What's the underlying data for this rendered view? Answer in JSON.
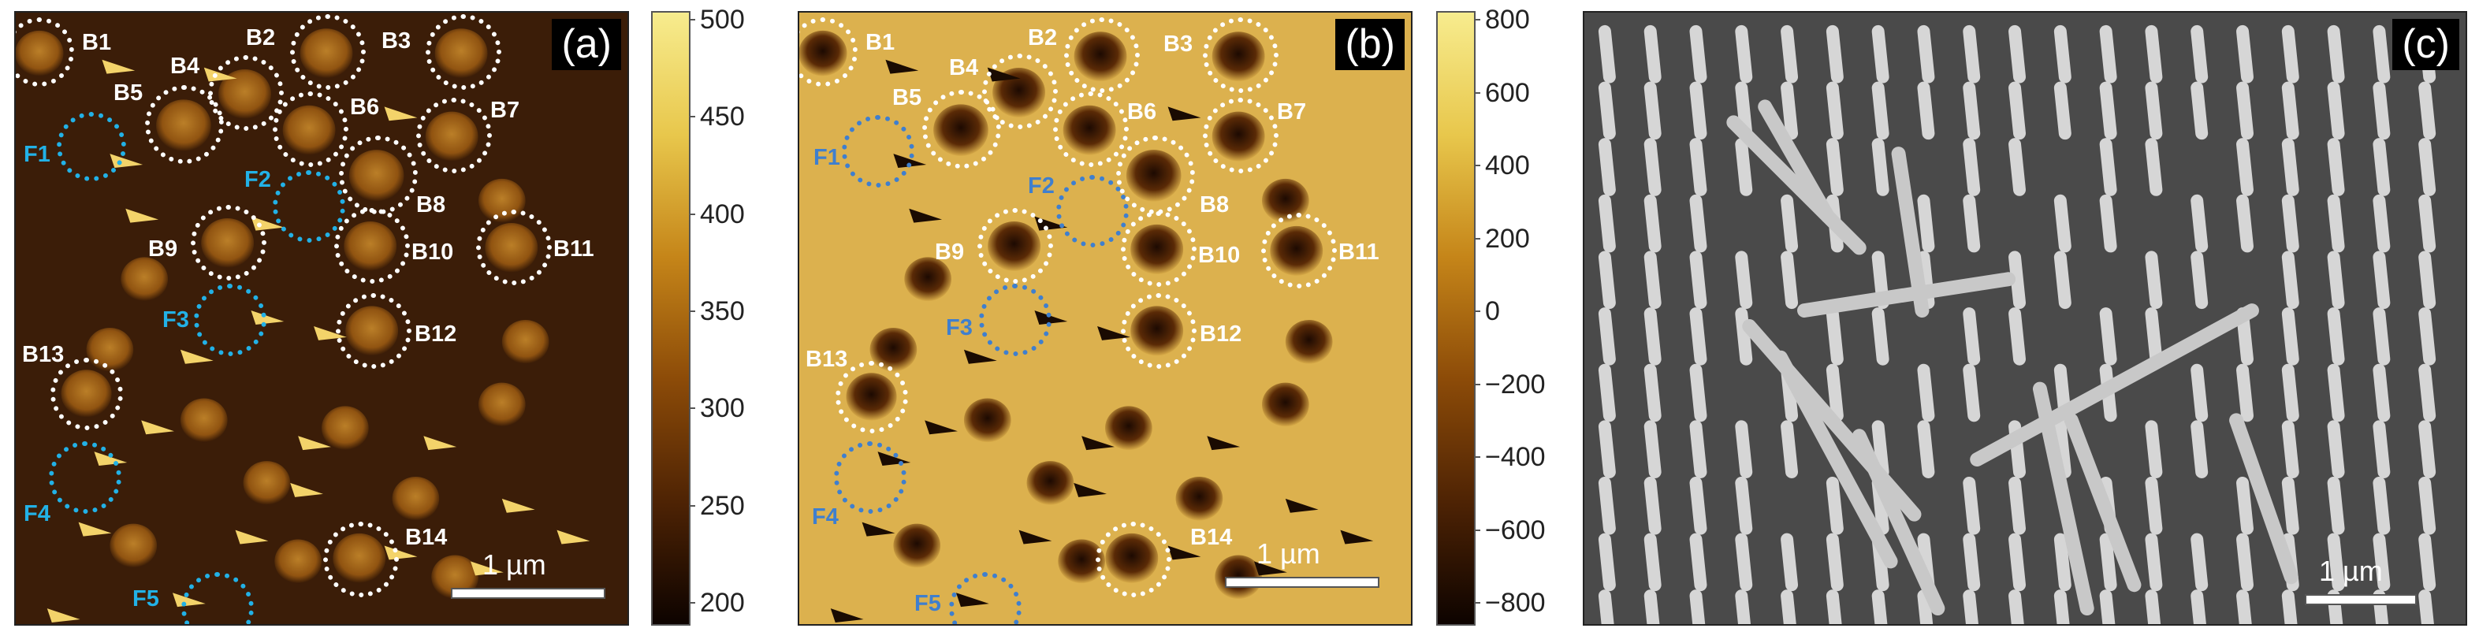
{
  "panels": {
    "a": {
      "label": "(a)",
      "scale_text": "1 µm",
      "markers": [
        {
          "label": "B1",
          "type": "b"
        },
        {
          "label": "B2",
          "type": "b"
        },
        {
          "label": "B3",
          "type": "b"
        },
        {
          "label": "B4",
          "type": "b"
        },
        {
          "label": "B5",
          "type": "b"
        },
        {
          "label": "B6",
          "type": "b"
        },
        {
          "label": "B7",
          "type": "b"
        },
        {
          "label": "B8",
          "type": "b"
        },
        {
          "label": "B9",
          "type": "b"
        },
        {
          "label": "B10",
          "type": "b"
        },
        {
          "label": "B11",
          "type": "b"
        },
        {
          "label": "B12",
          "type": "b"
        },
        {
          "label": "B13",
          "type": "b"
        },
        {
          "label": "B14",
          "type": "b"
        },
        {
          "label": "F1",
          "type": "f"
        },
        {
          "label": "F2",
          "type": "f"
        },
        {
          "label": "F3",
          "type": "f"
        },
        {
          "label": "F4",
          "type": "f"
        },
        {
          "label": "F5",
          "type": "f"
        }
      ],
      "colorbar_ticks": [
        "500",
        "450",
        "400",
        "350",
        "300",
        "250",
        "200"
      ]
    },
    "b": {
      "label": "(b)",
      "scale_text": "1 µm",
      "markers": [
        {
          "label": "B1",
          "type": "b"
        },
        {
          "label": "B2",
          "type": "b"
        },
        {
          "label": "B3",
          "type": "b"
        },
        {
          "label": "B4",
          "type": "b"
        },
        {
          "label": "B5",
          "type": "b"
        },
        {
          "label": "B6",
          "type": "b"
        },
        {
          "label": "B7",
          "type": "b"
        },
        {
          "label": "B8",
          "type": "b"
        },
        {
          "label": "B9",
          "type": "b"
        },
        {
          "label": "B10",
          "type": "b"
        },
        {
          "label": "B11",
          "type": "b"
        },
        {
          "label": "B12",
          "type": "b"
        },
        {
          "label": "B13",
          "type": "b"
        },
        {
          "label": "B14",
          "type": "b"
        },
        {
          "label": "F1",
          "type": "f"
        },
        {
          "label": "F2",
          "type": "f"
        },
        {
          "label": "F3",
          "type": "f"
        },
        {
          "label": "F4",
          "type": "f"
        },
        {
          "label": "F5",
          "type": "f"
        }
      ],
      "colorbar_ticks": [
        "800",
        "600",
        "400",
        "200",
        "0",
        "−200",
        "−400",
        "−600",
        "−800"
      ]
    },
    "c": {
      "label": "(c)",
      "scale_text": "1 µm"
    }
  },
  "colors": {
    "marker_b": "#ffffff",
    "marker_f_a": "#22b1e6",
    "marker_f_b": "#3f7fce",
    "afm_dark": "#3a1c07",
    "afm_light": "#d9ac48",
    "sem_bg": "#4b4b4b"
  }
}
